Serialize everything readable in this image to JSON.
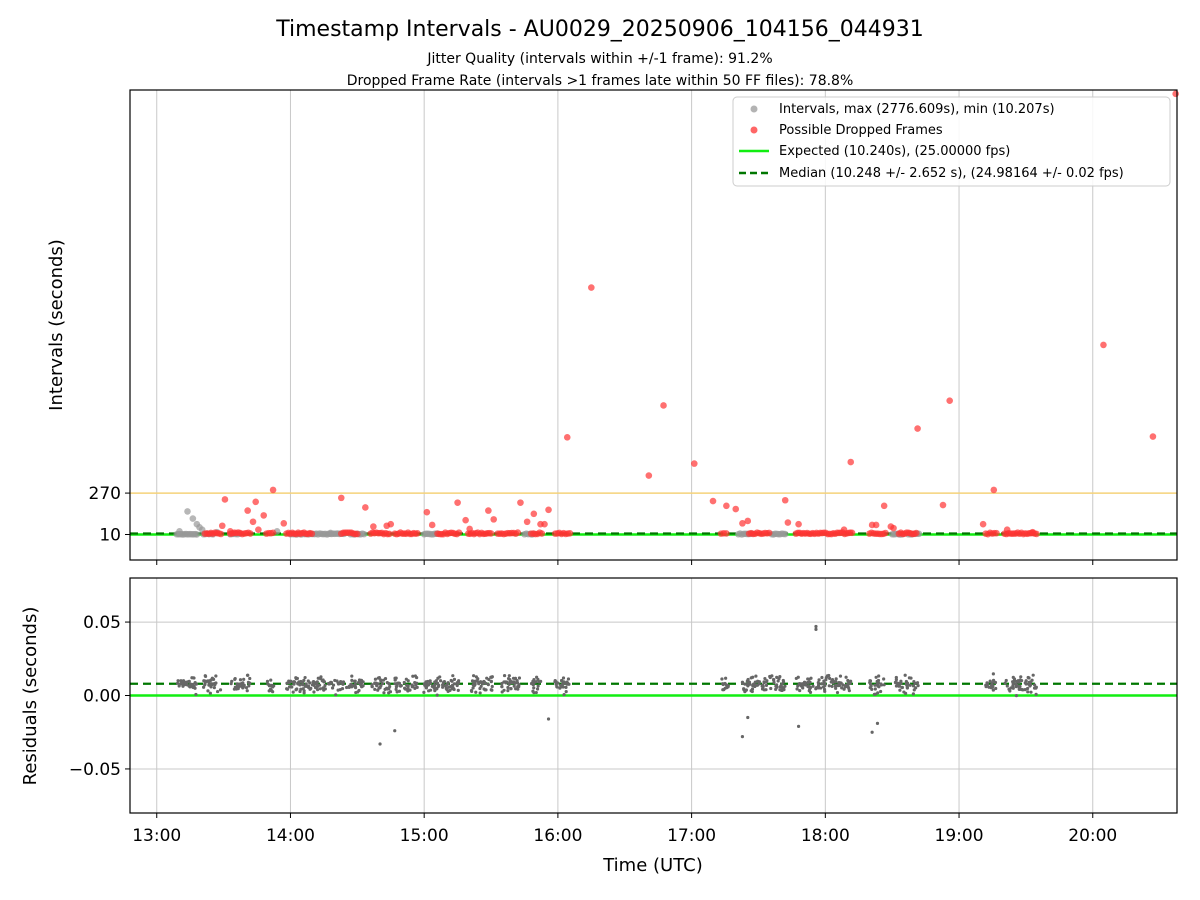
{
  "header": {
    "title": "Timestamp Intervals - AU0029_20250906_104156_044931",
    "subtitle_jitter": "Jitter Quality (intervals within +/-1 frame): 91.2%",
    "subtitle_dropped": "Dropped Frame Rate (intervals >1 frames late within 50 FF files): 78.8%"
  },
  "colors": {
    "intervals": "#999999",
    "dropped": "#ff3333",
    "expected": "#11ee11",
    "median": "#007700",
    "threshold": "#f5d27a",
    "residuals": "#666666",
    "grid": "#c8c8c8"
  },
  "chart_data": [
    {
      "type": "scatter",
      "panel": "intervals",
      "ylabel": "Intervals (seconds)",
      "xlabel": "",
      "x_unit": "hours UTC",
      "xlim": [
        12.8,
        20.63
      ],
      "ylim": [
        -150,
        2800
      ],
      "ytick_labels": [
        "10",
        "270"
      ],
      "yticks": [
        10,
        270
      ],
      "xticks": [
        13,
        14,
        15,
        16,
        17,
        18,
        19,
        20
      ],
      "grid": "x-only",
      "legend_position": "top-right",
      "threshold_line": 270,
      "legend": [
        "Intervals, max (2776.609s), min (10.207s)",
        "Possible Dropped Frames",
        "Expected (10.240s), (25.00000 fps)",
        "Median (10.248 +/- 2.652 s), (24.98164 +/- 0.02 fps)"
      ],
      "expected": 10.24,
      "median": 10.248,
      "max": 2776.609,
      "min": 10.207,
      "normal_segments": [
        [
          13.15,
          13.3
        ],
        [
          13.35,
          13.42
        ],
        [
          13.55,
          13.62
        ],
        [
          14.0,
          14.4
        ],
        [
          14.45,
          14.55
        ],
        [
          15.0,
          15.1
        ],
        [
          15.75,
          15.82
        ],
        [
          17.35,
          17.45
        ],
        [
          17.6,
          17.7
        ],
        [
          18.5,
          18.58
        ],
        [
          18.62,
          18.7
        ]
      ],
      "normal_points": {
        "x": [
          13.17,
          13.23,
          13.27,
          13.3,
          13.32,
          13.34,
          13.45,
          13.9,
          14.3
        ],
        "y": [
          30,
          155,
          110,
          75,
          55,
          40,
          25,
          30,
          20
        ]
      },
      "dropped_segments": [
        [
          13.36,
          13.48
        ],
        [
          13.55,
          13.7
        ],
        [
          13.82,
          13.87
        ],
        [
          13.97,
          14.16
        ],
        [
          14.38,
          14.5
        ],
        [
          14.6,
          14.74
        ],
        [
          14.78,
          14.95
        ],
        [
          15.1,
          15.26
        ],
        [
          15.33,
          15.5
        ],
        [
          15.55,
          15.7
        ],
        [
          15.8,
          15.88
        ],
        [
          15.98,
          16.09
        ],
        [
          17.22,
          17.26
        ],
        [
          17.43,
          17.58
        ],
        [
          17.78,
          18.2
        ],
        [
          18.33,
          18.45
        ],
        [
          18.55,
          18.68
        ],
        [
          19.2,
          19.28
        ],
        [
          19.34,
          19.58
        ]
      ],
      "dropped_points": {
        "x": [
          13.49,
          13.51,
          13.55,
          13.68,
          13.72,
          13.74,
          13.76,
          13.8,
          13.87,
          13.95,
          14.38,
          14.56,
          14.62,
          14.72,
          14.75,
          15.02,
          15.06,
          15.25,
          15.31,
          15.34,
          15.48,
          15.52,
          15.72,
          15.77,
          15.82,
          15.87,
          15.9,
          15.93,
          16.07,
          16.25,
          16.68,
          16.79,
          17.02,
          17.16,
          17.26,
          17.33,
          17.38,
          17.42,
          17.7,
          17.72,
          17.8,
          18.14,
          18.19,
          18.35,
          18.38,
          18.44,
          18.49,
          18.51,
          18.69,
          18.88,
          18.93,
          19.18,
          19.26,
          19.36,
          19.55,
          20.08,
          20.45,
          20.62
        ],
        "y": [
          65,
          230,
          30,
          160,
          90,
          215,
          40,
          130,
          290,
          80,
          240,
          180,
          60,
          65,
          75,
          150,
          70,
          210,
          100,
          45,
          160,
          105,
          210,
          90,
          140,
          75,
          75,
          165,
          620,
          1560,
          380,
          820,
          455,
          220,
          190,
          170,
          80,
          95,
          225,
          85,
          75,
          40,
          465,
          70,
          70,
          190,
          60,
          50,
          675,
          195,
          850,
          75,
          290,
          40,
          25,
          1200,
          625,
          2776
        ]
      }
    },
    {
      "type": "scatter",
      "panel": "residuals",
      "ylabel": "Residuals (seconds)",
      "xlabel": "Time (UTC)",
      "xlim": [
        12.8,
        20.63
      ],
      "ylim": [
        -0.08,
        0.08
      ],
      "yticks": [
        0.05,
        0.0,
        -0.05
      ],
      "ytick_labels": [
        "0.05",
        "0.00",
        "−0.05"
      ],
      "xticks": [
        13,
        14,
        15,
        16,
        17,
        18,
        19,
        20
      ],
      "xtick_labels": [
        "13:00",
        "14:00",
        "15:00",
        "16:00",
        "17:00",
        "18:00",
        "19:00",
        "20:00"
      ],
      "grid": "both",
      "expected": 0.0,
      "median": 0.008,
      "clusters": [
        [
          13.15,
          13.3
        ],
        [
          13.35,
          13.48
        ],
        [
          13.55,
          13.7
        ],
        [
          13.82,
          13.88
        ],
        [
          13.97,
          14.4
        ],
        [
          14.42,
          14.55
        ],
        [
          14.6,
          14.75
        ],
        [
          14.78,
          14.95
        ],
        [
          14.98,
          15.26
        ],
        [
          15.33,
          15.52
        ],
        [
          15.55,
          15.72
        ],
        [
          15.8,
          15.88
        ],
        [
          15.97,
          16.09
        ],
        [
          17.22,
          17.28
        ],
        [
          17.38,
          17.7
        ],
        [
          17.78,
          18.2
        ],
        [
          18.33,
          18.45
        ],
        [
          18.52,
          18.7
        ],
        [
          19.2,
          19.28
        ],
        [
          19.34,
          19.58
        ]
      ],
      "outliers": {
        "x": [
          14.67,
          14.78,
          15.93,
          17.38,
          17.42,
          17.8,
          17.93,
          17.93,
          18.35,
          18.39
        ],
        "y": [
          -0.033,
          -0.024,
          -0.016,
          -0.028,
          -0.015,
          -0.021,
          0.047,
          0.045,
          -0.025,
          -0.019
        ]
      }
    }
  ]
}
